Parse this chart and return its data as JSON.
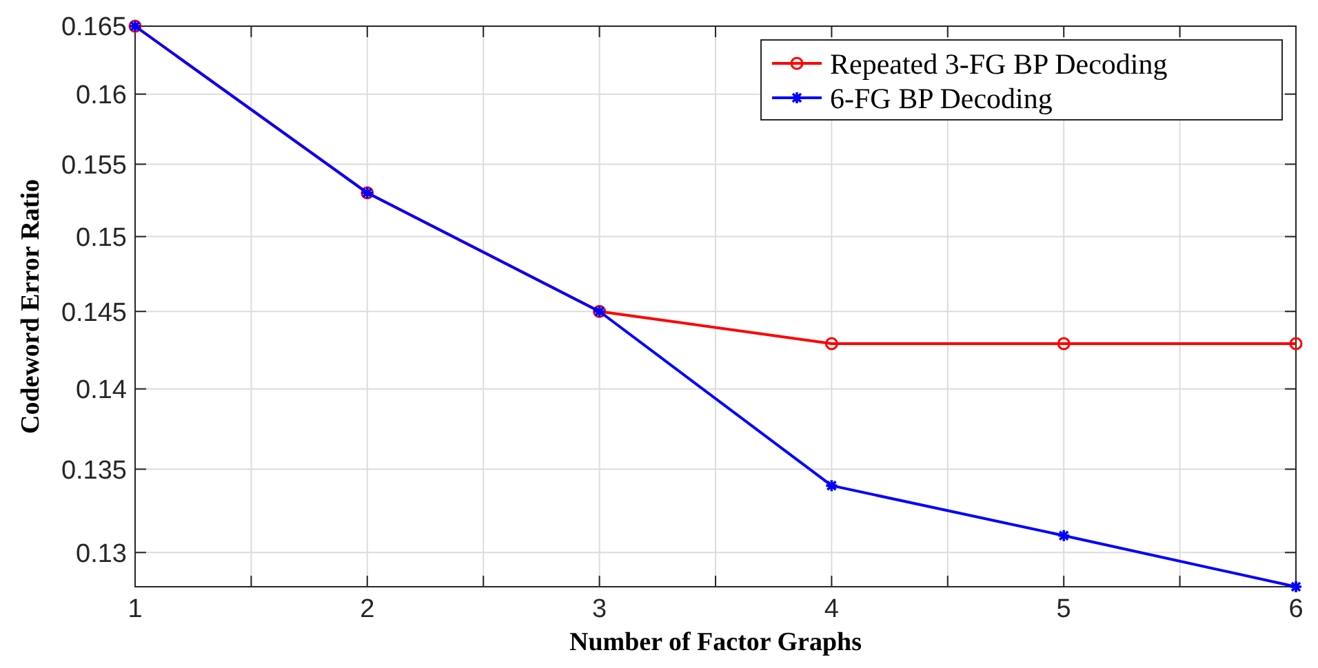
{
  "chart_data": {
    "type": "line",
    "xlabel": "Number of Factor Graphs",
    "ylabel": "Codeword Error Ratio",
    "x": [
      1,
      2,
      3,
      4,
      5,
      6
    ],
    "series": [
      {
        "name": "Repeated 3-FG BP Decoding",
        "color": "#ff0000",
        "marker": "circle",
        "values": [
          0.165,
          0.153,
          0.145,
          0.1429,
          0.1429,
          0.1429
        ]
      },
      {
        "name": "6-FG BP Decoding",
        "color": "#0000ff",
        "marker": "cross",
        "values": [
          0.165,
          0.153,
          0.145,
          0.134,
          0.131,
          0.128
        ]
      }
    ],
    "xlim": [
      1,
      6
    ],
    "xticks": [
      1,
      {
        "value": 1.5,
        "label": null
      },
      2,
      {
        "value": 2.5,
        "label": null
      },
      3,
      {
        "value": 3.5,
        "label": null
      },
      4,
      {
        "value": 4.5,
        "label": null
      },
      5,
      {
        "value": 5.5,
        "label": null
      },
      6
    ],
    "ylim": [
      0.128,
      0.165
    ],
    "yticks": [
      0.13,
      0.135,
      0.14,
      0.145,
      0.15,
      0.155,
      0.16,
      0.165
    ],
    "log": true,
    "grid": true,
    "legend": "top right",
    "line_style": "solid"
  }
}
